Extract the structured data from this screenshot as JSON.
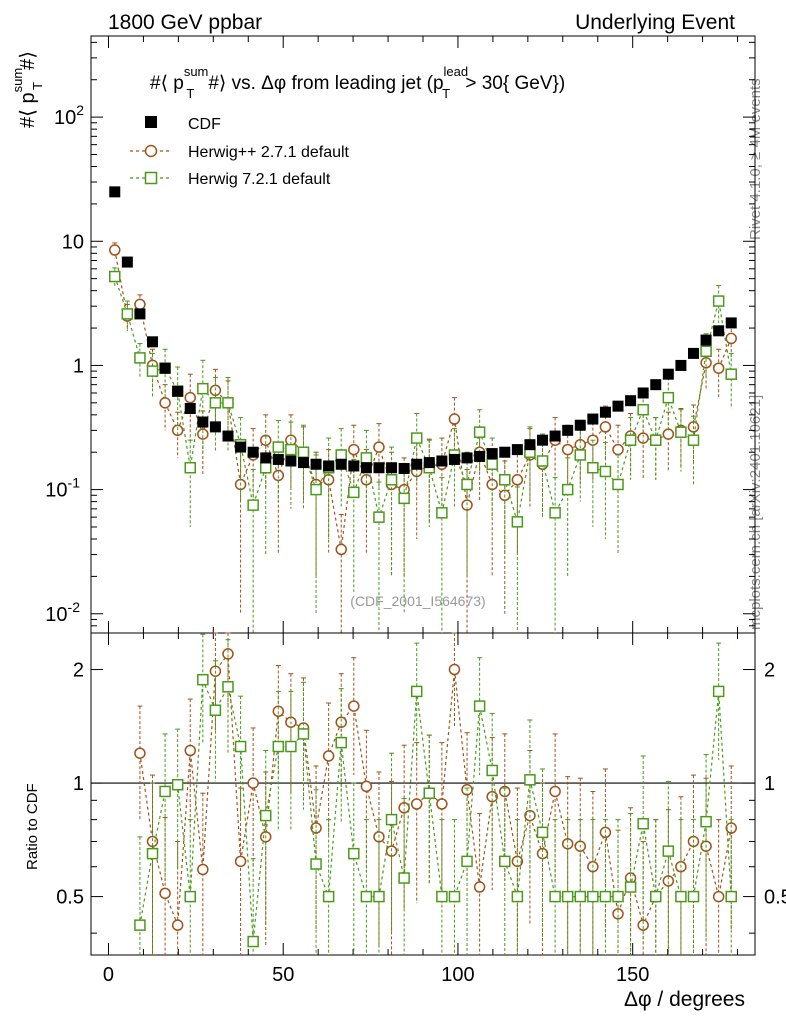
{
  "header": {
    "left_label": "1800 GeV ppbar",
    "right_label": "Underlying Event"
  },
  "side_labels": {
    "rivet": "Rivet 4.1.0, ≥ 4M events",
    "mcplots": "mcplots.cern.ch [arXiv:2401.10621]"
  },
  "watermark": "(CDF_2001_I564673)",
  "chart_data": [
    {
      "type": "scatter",
      "panel": "main",
      "title": "#⟨ p_T^sum #⟩ vs. Δφ from leading jet  (p_T^lead > 30{ GeV})",
      "title_parts": {
        "prefix": "#⟨ p",
        "sup1": "sum",
        "sub1": "T",
        "mid": "#⟩ vs. Δφ from leading jet  (p",
        "sup2": "lead",
        "sub2": "T",
        "suffix": " > 30{ GeV})"
      },
      "ylabel": "#⟨ p_T^sum #⟩",
      "ylabel_parts": {
        "main": "#⟨ p",
        "sup": "sum",
        "sub": "T",
        "end": "#⟩"
      },
      "xlabel": "Δφ / degrees",
      "yscale": "log",
      "ylim": [
        0.007,
        450
      ],
      "xlim": [
        -5,
        185
      ],
      "y_ticks": [
        {
          "value": 0.01,
          "label": "10",
          "exp": "-2"
        },
        {
          "value": 0.1,
          "label": "10",
          "exp": "-1"
        },
        {
          "value": 1,
          "label": "1",
          "exp": ""
        },
        {
          "value": 10,
          "label": "10",
          "exp": ""
        },
        {
          "value": 100,
          "label": "10",
          "exp": "2"
        }
      ],
      "legend_position": "top-left",
      "series": [
        {
          "name": "CDF",
          "color": "#000000",
          "marker": "filled-square",
          "x": [
            1.8,
            5.4,
            9,
            12.6,
            16.2,
            19.8,
            23.4,
            27,
            30.6,
            34.2,
            37.8,
            41.4,
            45,
            48.6,
            52.2,
            55.8,
            59.4,
            63,
            66.6,
            70.2,
            73.8,
            77.4,
            81,
            84.6,
            88.2,
            91.8,
            95.4,
            99,
            102.6,
            106.2,
            109.8,
            113.4,
            117,
            120.6,
            124.2,
            127.8,
            131.4,
            135,
            138.6,
            142.2,
            145.8,
            149.4,
            153,
            156.6,
            160.2,
            163.8,
            167.4,
            171,
            174.6,
            178.2
          ],
          "y": [
            25,
            6.8,
            2.6,
            1.55,
            0.95,
            0.62,
            0.45,
            0.35,
            0.32,
            0.27,
            0.22,
            0.2,
            0.18,
            0.175,
            0.17,
            0.165,
            0.16,
            0.155,
            0.16,
            0.155,
            0.15,
            0.15,
            0.15,
            0.148,
            0.16,
            0.165,
            0.17,
            0.175,
            0.18,
            0.185,
            0.195,
            0.2,
            0.21,
            0.23,
            0.25,
            0.27,
            0.3,
            0.33,
            0.37,
            0.42,
            0.47,
            0.52,
            0.6,
            0.7,
            0.85,
            1,
            1.25,
            1.6,
            1.9,
            2.2
          ]
        },
        {
          "name": "Herwig++ 2.7.1 default",
          "color": "#a0521a",
          "marker": "open-circle",
          "x": [
            1.8,
            5.4,
            9,
            12.6,
            16.2,
            19.8,
            23.4,
            27,
            30.6,
            34.2,
            37.8,
            41.4,
            45,
            48.6,
            52.2,
            55.8,
            59.4,
            63,
            66.6,
            70.2,
            73.8,
            77.4,
            81,
            84.6,
            88.2,
            91.8,
            95.4,
            99,
            102.6,
            106.2,
            109.8,
            113.4,
            117,
            120.6,
            124.2,
            127.8,
            131.4,
            135,
            138.6,
            142.2,
            145.8,
            149.4,
            153,
            156.6,
            160.2,
            163.8,
            167.4,
            171,
            174.6,
            178.2
          ],
          "y": [
            8.5,
            2.5,
            3.1,
            1,
            0.5,
            0.3,
            0.55,
            0.28,
            0.63,
            0.5,
            0.11,
            0.19,
            0.25,
            0.13,
            0.25,
            0.2,
            0.11,
            0.12,
            0.033,
            0.21,
            0.12,
            0.22,
            0.11,
            0.1,
            0.14,
            0.155,
            0.16,
            0.37,
            0.075,
            0.2,
            0.11,
            0.09,
            0.12,
            0.19,
            0.16,
            0.25,
            0.21,
            0.23,
            0.25,
            0.32,
            0.21,
            0.27,
            0.26,
            0.25,
            0.28,
            0.3,
            0.32,
            1.05,
            0.95,
            1.65
          ],
          "err": [
            1.2,
            0.6,
            0.6,
            0.35,
            0.2,
            0.12,
            0.3,
            0.15,
            0.3,
            0.25,
            0.1,
            0.12,
            0.15,
            0.1,
            0.15,
            0.12,
            0.09,
            0.09,
            0.03,
            0.12,
            0.09,
            0.12,
            0.09,
            0.08,
            0.1,
            0.1,
            0.1,
            0.18,
            0.07,
            0.12,
            0.09,
            0.08,
            0.09,
            0.12,
            0.1,
            0.13,
            0.12,
            0.12,
            0.13,
            0.15,
            0.12,
            0.14,
            0.14,
            0.13,
            0.14,
            0.15,
            0.16,
            0.4,
            0.4,
            0.5
          ]
        },
        {
          "name": "Herwig 7.2.1 default",
          "color": "#4a9a1a",
          "marker": "open-square",
          "x": [
            1.8,
            5.4,
            9,
            12.6,
            16.2,
            19.8,
            23.4,
            27,
            30.6,
            34.2,
            37.8,
            41.4,
            45,
            48.6,
            52.2,
            55.8,
            59.4,
            63,
            66.6,
            70.2,
            73.8,
            77.4,
            81,
            84.6,
            88.2,
            91.8,
            95.4,
            99,
            102.6,
            106.2,
            109.8,
            113.4,
            117,
            120.6,
            124.2,
            127.8,
            131.4,
            135,
            138.6,
            142.2,
            145.8,
            149.4,
            153,
            156.6,
            160.2,
            163.8,
            167.4,
            171,
            174.6,
            178.2
          ],
          "y": [
            5.2,
            2.6,
            1.15,
            0.9,
            0.95,
            0.62,
            0.15,
            0.65,
            0.5,
            0.5,
            0.23,
            0.075,
            0.15,
            0.22,
            0.21,
            0.2,
            0.1,
            0.15,
            0.19,
            0.095,
            0.18,
            0.06,
            0.12,
            0.085,
            0.26,
            0.15,
            0.065,
            0.19,
            0.11,
            0.29,
            0.16,
            0.12,
            0.055,
            0.2,
            0.17,
            0.065,
            0.1,
            0.19,
            0.15,
            0.14,
            0.11,
            0.25,
            0.44,
            0.25,
            0.55,
            0.29,
            0.25,
            1.3,
            3.3,
            0.85
          ],
          "err": [
            0.9,
            0.7,
            0.35,
            0.35,
            0.4,
            0.35,
            0.1,
            0.45,
            0.3,
            0.3,
            0.15,
            0.07,
            0.12,
            0.14,
            0.14,
            0.13,
            0.09,
            0.11,
            0.12,
            0.08,
            0.12,
            0.055,
            0.1,
            0.075,
            0.15,
            0.1,
            0.06,
            0.12,
            0.09,
            0.15,
            0.1,
            0.09,
            0.05,
            0.12,
            0.11,
            0.06,
            0.08,
            0.11,
            0.1,
            0.1,
            0.08,
            0.13,
            0.2,
            0.13,
            0.25,
            0.15,
            0.14,
            0.5,
            1.1,
            0.4
          ]
        }
      ]
    },
    {
      "type": "scatter",
      "panel": "ratio",
      "ylabel": "Ratio to CDF",
      "xlabel": "Δφ / degrees",
      "yscale": "log",
      "ylim": [
        0.35,
        2.5
      ],
      "xlim": [
        -5,
        185
      ],
      "reference_line": 1,
      "y_ticks": [
        {
          "value": 0.5,
          "label": "0.5"
        },
        {
          "value": 1,
          "label": "1"
        },
        {
          "value": 2,
          "label": "2"
        }
      ],
      "x_ticks": [
        {
          "value": 0,
          "label": "0"
        },
        {
          "value": 50,
          "label": "50"
        },
        {
          "value": 100,
          "label": "100"
        },
        {
          "value": 150,
          "label": "150"
        }
      ],
      "series": [
        {
          "name": "Herwig++ 2.7.1 default",
          "color": "#a0521a",
          "marker": "open-circle",
          "x": [
            9,
            12.6,
            16.2,
            19.8,
            23.4,
            27,
            30.6,
            34.2,
            37.8,
            41.4,
            45,
            48.6,
            52.2,
            55.8,
            59.4,
            63,
            66.6,
            70.2,
            73.8,
            77.4,
            81,
            84.6,
            88.2,
            91.8,
            95.4,
            99,
            102.6,
            106.2,
            109.8,
            113.4,
            117,
            120.6,
            124.2,
            127.8,
            131.4,
            135,
            138.6,
            142.2,
            145.8,
            149.4,
            153,
            156.6,
            160.2,
            163.8,
            167.4,
            171,
            174.6,
            178.2
          ],
          "y": [
            1.2,
            0.7,
            0.51,
            0.42,
            1.22,
            0.59,
            1.98,
            2.2,
            0.62,
            1,
            0.72,
            1.55,
            1.45,
            1.4,
            0.76,
            1.18,
            1.45,
            1.6,
            0.98,
            0.72,
            0.66,
            0.86,
            0.88,
            0.94,
            0.88,
            2,
            0.96,
            0.53,
            0.92,
            0.95,
            0.62,
            0.82,
            0.65,
            0.95,
            0.69,
            0.68,
            0.6,
            0.74,
            0.45,
            0.56,
            0.42,
            0.5,
            0.55,
            0.6,
            0.7,
            0.68,
            0.5,
            0.76
          ],
          "err": [
            0.4,
            0.35,
            0.3,
            0.28,
            0.45,
            0.35,
            0.6,
            0.6,
            0.35,
            0.4,
            0.35,
            0.5,
            0.5,
            0.5,
            0.35,
            0.45,
            0.5,
            0.55,
            0.4,
            0.35,
            0.35,
            0.4,
            0.4,
            0.4,
            0.4,
            0.6,
            0.4,
            0.3,
            0.4,
            0.4,
            0.35,
            0.4,
            0.35,
            0.4,
            0.35,
            0.35,
            0.35,
            0.35,
            0.3,
            0.3,
            0.28,
            0.3,
            0.3,
            0.32,
            0.35,
            0.35,
            0.3,
            0.35
          ]
        },
        {
          "name": "Herwig 7.2.1 default",
          "color": "#4a9a1a",
          "marker": "open-square",
          "x": [
            9,
            12.6,
            16.2,
            19.8,
            23.4,
            27,
            30.6,
            34.2,
            37.8,
            41.4,
            45,
            48.6,
            52.2,
            55.8,
            59.4,
            63,
            66.6,
            70.2,
            73.8,
            77.4,
            81,
            84.6,
            88.2,
            91.8,
            95.4,
            99,
            102.6,
            106.2,
            109.8,
            113.4,
            117,
            120.6,
            124.2,
            127.8,
            131.4,
            135,
            138.6,
            142.2,
            145.8,
            149.4,
            153,
            156.6,
            160.2,
            163.8,
            167.4,
            171,
            174.6,
            178.2
          ],
          "y": [
            0.42,
            0.65,
            0.95,
            0.99,
            0.5,
            1.88,
            1.56,
            1.8,
            1.25,
            0.38,
            0.82,
            1.25,
            1.25,
            1.35,
            0.61,
            0.5,
            1.28,
            0.65,
            0.5,
            0.5,
            0.8,
            0.56,
            1.75,
            0.94,
            0.5,
            0.5,
            0.62,
            1.6,
            1.08,
            0.62,
            0.5,
            1.02,
            0.74,
            0.5,
            0.5,
            0.5,
            0.5,
            0.5,
            0.5,
            0.53,
            0.78,
            0.5,
            0.66,
            0.5,
            0.5,
            0.79,
            1.75,
            0.5
          ],
          "err": [
            0.3,
            0.35,
            0.4,
            0.4,
            0.3,
            0.6,
            0.55,
            0.6,
            0.45,
            0.25,
            0.4,
            0.5,
            0.5,
            0.5,
            0.35,
            0.3,
            0.5,
            0.35,
            0.3,
            0.3,
            0.4,
            0.35,
            0.6,
            0.4,
            0.3,
            0.3,
            0.35,
            0.55,
            0.45,
            0.35,
            0.3,
            0.45,
            0.35,
            0.3,
            0.3,
            0.3,
            0.3,
            0.3,
            0.3,
            0.3,
            0.4,
            0.3,
            0.35,
            0.3,
            0.3,
            0.4,
            0.6,
            0.3
          ]
        }
      ]
    }
  ]
}
